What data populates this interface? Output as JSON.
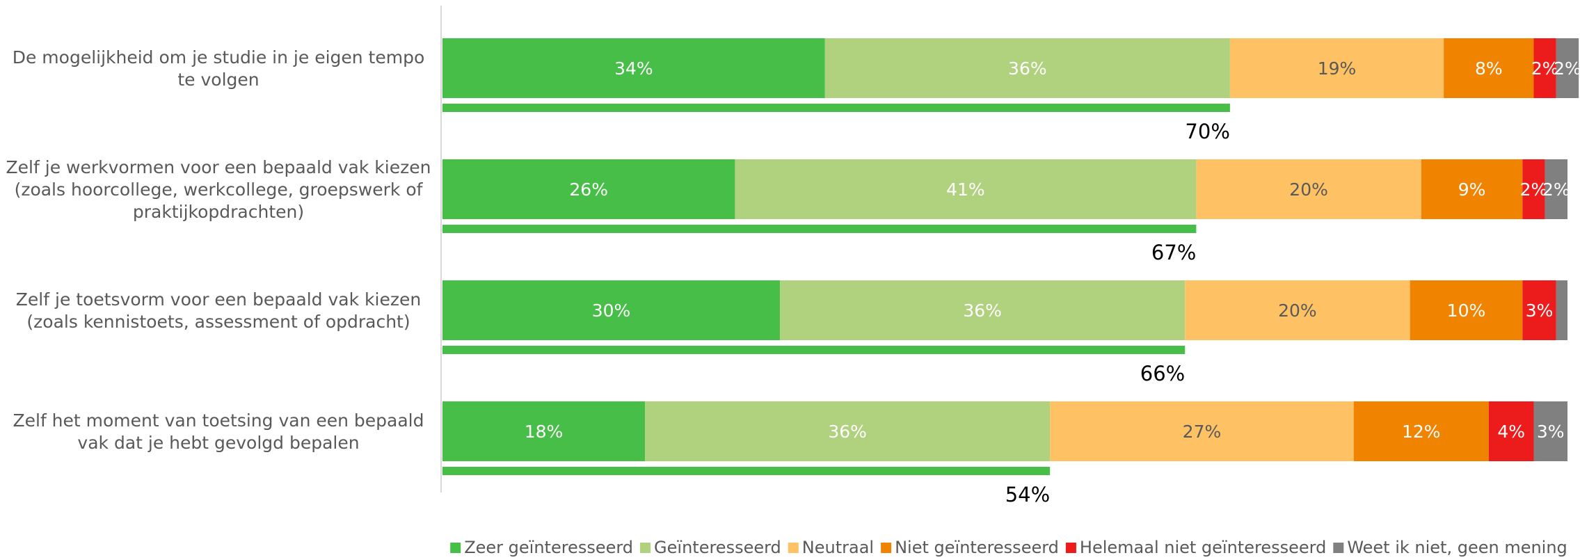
{
  "chart_data": {
    "type": "bar",
    "orientation": "horizontal",
    "stacked": true,
    "title": "",
    "xlabel": "",
    "ylabel": "",
    "xlim": [
      0,
      100
    ],
    "grid": false,
    "legend_position": "bottom",
    "categories": [
      "De mogelijkheid om je studie in je eigen tempo te volgen",
      "Zelf je werkvormen voor een bepaald vak kiezen (zoals hoorcollege, werkcollege, groepswerk of praktijkopdrachten)",
      "Zelf je toetsvorm voor een bepaald vak kiezen (zoals kennistoets, assessment of opdracht)",
      "Zelf het moment van toetsing van een bepaald vak dat je hebt gevolgd bepalen"
    ],
    "category_lines": [
      [
        "De mogelijkheid om je studie in je eigen tempo",
        "te volgen"
      ],
      [
        "Zelf je werkvormen voor een bepaald vak kiezen",
        "(zoals hoorcollege, werkcollege, groepswerk of",
        "praktijkopdrachten)"
      ],
      [
        "Zelf je toetsvorm voor een bepaald vak kiezen",
        "(zoals kennistoets, assessment of opdracht)"
      ],
      [
        "Zelf het moment van toetsing van een bepaald",
        "vak dat je hebt gevolgd bepalen"
      ]
    ],
    "series": [
      {
        "name": "Zeer geïnteresseerd",
        "color": "#47be47",
        "label_color": "#ffffff",
        "values": [
          34,
          26,
          30,
          18
        ],
        "labels": [
          "34%",
          "26%",
          "30%",
          "18%"
        ]
      },
      {
        "name": "Geïnteresseerd",
        "color": "#b0d27e",
        "label_color": "#ffffff",
        "values": [
          36,
          41,
          36,
          36
        ],
        "labels": [
          "36%",
          "41%",
          "36%",
          "36%"
        ]
      },
      {
        "name": "Neutraal",
        "color": "#fec264",
        "label_color": "#595959",
        "values": [
          19,
          20,
          20,
          27
        ],
        "labels": [
          "19%",
          "20%",
          "20%",
          "27%"
        ]
      },
      {
        "name": "Niet geïnteresseerd",
        "color": "#f08300",
        "label_color": "#ffffff",
        "values": [
          8,
          9,
          10,
          12
        ],
        "labels": [
          "8%",
          "9%",
          "10%",
          "12%"
        ]
      },
      {
        "name": "Helemaal niet geïnteresseerd",
        "color": "#ec1c1c",
        "label_color": "#ffffff",
        "values": [
          2,
          2,
          3,
          4
        ],
        "labels": [
          "2%",
          "2%",
          "3%",
          "4%"
        ]
      },
      {
        "name": "Weet ik niet, geen mening",
        "color": "#808080",
        "label_color": "#ffffff",
        "values": [
          2,
          2,
          1,
          3
        ],
        "labels": [
          "2%",
          "2%",
          "",
          "3%"
        ]
      }
    ],
    "totals": {
      "color": "#47be47",
      "values": [
        70,
        67,
        66,
        54
      ],
      "labels": [
        "70%",
        "67%",
        "66%",
        "54%"
      ]
    }
  }
}
